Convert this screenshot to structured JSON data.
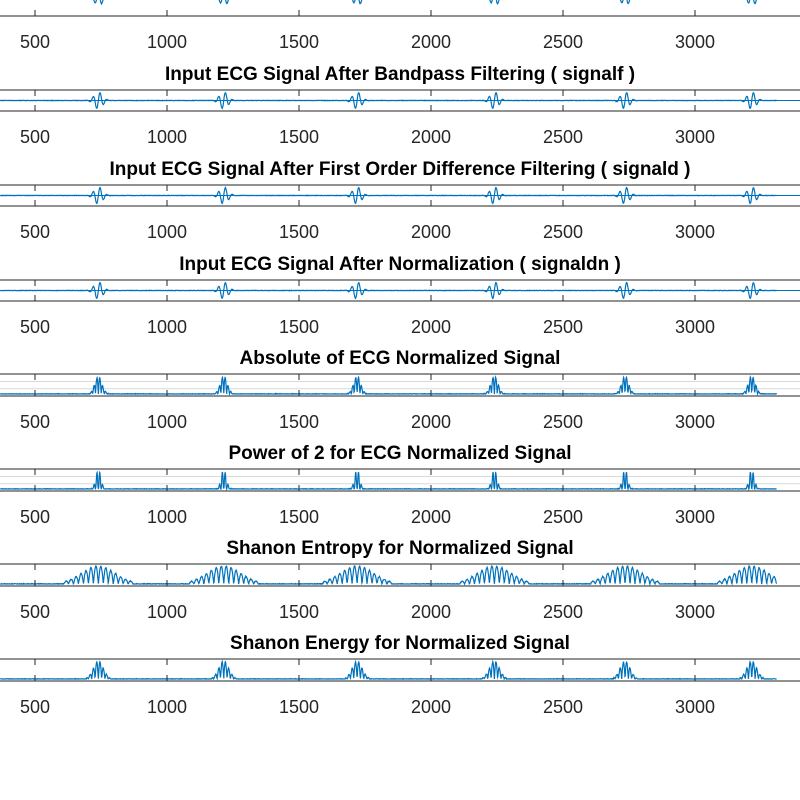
{
  "figure": {
    "colors": {
      "line": "#0072BD",
      "axis": "#262626",
      "grid": "#d9d9d9",
      "background": "#ffffff"
    }
  },
  "chart_data": [
    {
      "type": "line",
      "kind": "ecg",
      "title": "",
      "x_ticks": [
        "500",
        "1000",
        "1500",
        "2000",
        "2500",
        "3000"
      ],
      "xlim": [
        260,
        3310
      ],
      "ylim": [
        -1,
        1
      ],
      "grid": false,
      "beats_at": [
        740,
        1215,
        1720,
        2240,
        2735,
        3215
      ]
    },
    {
      "type": "line",
      "kind": "bipolar",
      "title": "Input ECG Signal After Bandpass Filtering  ( signalf )",
      "x_ticks": [
        "500",
        "1000",
        "1500",
        "2000",
        "2500",
        "3000"
      ],
      "xlim": [
        260,
        3310
      ],
      "ylim": [
        -1,
        1
      ],
      "grid": false,
      "beats_at": [
        740,
        1215,
        1720,
        2240,
        2735,
        3215
      ]
    },
    {
      "type": "line",
      "kind": "bipolar",
      "title": "Input ECG Signal After First Order Difference Filtering  ( signald )",
      "x_ticks": [
        "500",
        "1000",
        "1500",
        "2000",
        "2500",
        "3000"
      ],
      "xlim": [
        260,
        3310
      ],
      "ylim": [
        -1,
        1
      ],
      "grid": false,
      "beats_at": [
        740,
        1215,
        1720,
        2240,
        2735,
        3215
      ]
    },
    {
      "type": "line",
      "kind": "bipolar",
      "title": "Input ECG Signal After Normalization  ( signaldn )",
      "x_ticks": [
        "500",
        "1000",
        "1500",
        "2000",
        "2500",
        "3000"
      ],
      "xlim": [
        260,
        3310
      ],
      "ylim": [
        -1,
        1
      ],
      "grid": false,
      "beats_at": [
        740,
        1215,
        1720,
        2240,
        2735,
        3215
      ]
    },
    {
      "type": "line",
      "kind": "abs",
      "title": "Absolute of ECG Normalized Signal",
      "x_ticks": [
        "500",
        "1000",
        "1500",
        "2000",
        "2500",
        "3000"
      ],
      "xlim": [
        260,
        3310
      ],
      "ylim": [
        0,
        1
      ],
      "grid": true,
      "beats_at": [
        740,
        1215,
        1720,
        2240,
        2735,
        3215
      ]
    },
    {
      "type": "line",
      "kind": "power",
      "title": "Power of 2 for ECG Normalized Signal",
      "x_ticks": [
        "500",
        "1000",
        "1500",
        "2000",
        "2500",
        "3000"
      ],
      "xlim": [
        260,
        3310
      ],
      "ylim": [
        0,
        1
      ],
      "grid": true,
      "beats_at": [
        740,
        1215,
        1720,
        2240,
        2735,
        3215
      ]
    },
    {
      "type": "line",
      "kind": "entropy",
      "title": "Shanon Entropy for Normalized Signal",
      "x_ticks": [
        "500",
        "1000",
        "1500",
        "2000",
        "2500",
        "3000"
      ],
      "xlim": [
        260,
        3310
      ],
      "ylim": [
        0,
        1
      ],
      "grid": false,
      "beats_at": [
        740,
        1215,
        1720,
        2240,
        2735,
        3215
      ]
    },
    {
      "type": "line",
      "kind": "energy",
      "title": "Shanon Energy for Normalized Signal",
      "x_ticks": [
        "500",
        "1000",
        "1500",
        "2000",
        "2500",
        "3000"
      ],
      "xlim": [
        260,
        3310
      ],
      "ylim": [
        0,
        1
      ],
      "grid": false,
      "beats_at": [
        740,
        1215,
        1720,
        2240,
        2735,
        3215
      ]
    }
  ]
}
